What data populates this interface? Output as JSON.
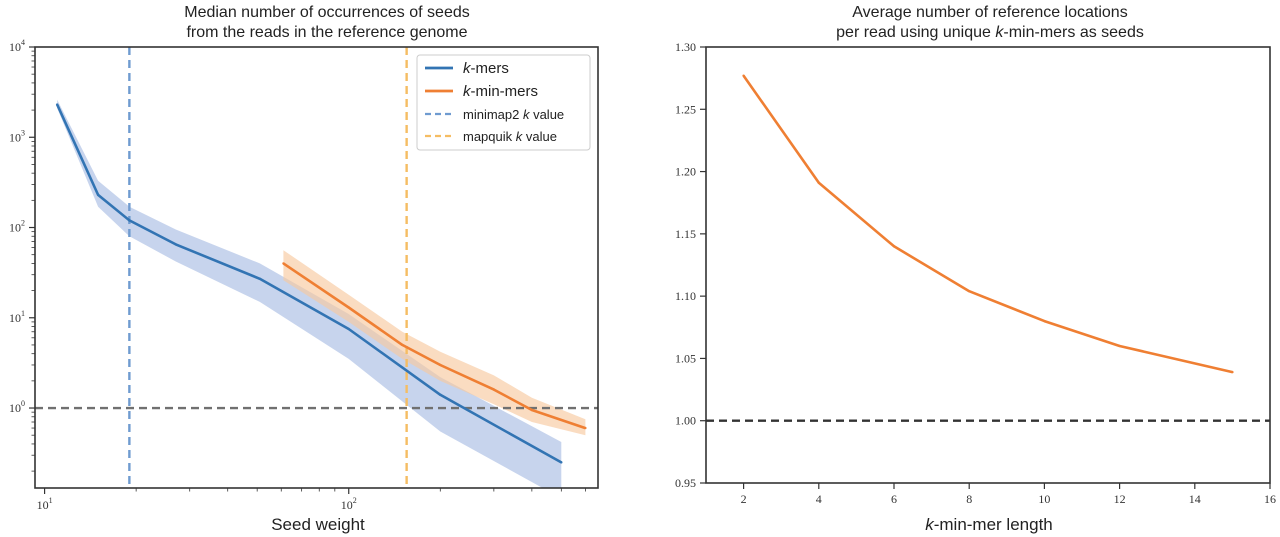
{
  "chart_data": [
    {
      "type": "line",
      "title": [
        "Median number of occurrences of seeds",
        "from the reads in the reference genome"
      ],
      "xlabel": "Seed weight",
      "ylabel": "",
      "xscale": "log",
      "yscale": "log",
      "xlim": [
        9.3,
        660
      ],
      "ylim": [
        0.13,
        10000
      ],
      "x_ticks": [
        {
          "base": "10",
          "exp": "1",
          "value": 10
        },
        {
          "base": "10",
          "exp": "2",
          "value": 100
        }
      ],
      "y_ticks": [
        {
          "base": "10",
          "exp": "0",
          "value": 1
        },
        {
          "base": "10",
          "exp": "1",
          "value": 10
        },
        {
          "base": "10",
          "exp": "2",
          "value": 100
        },
        {
          "base": "10",
          "exp": "3",
          "value": 1000
        },
        {
          "base": "10",
          "exp": "4",
          "value": 10000
        }
      ],
      "series": [
        {
          "name": "k-mers",
          "color": "#3274b3",
          "band_color": "#a9bde3",
          "x": [
            11,
            15,
            19,
            27,
            51,
            100,
            200,
            500
          ],
          "y": [
            2300,
            230,
            120,
            65,
            27,
            7.5,
            1.4,
            0.25
          ],
          "lower": [
            2100,
            170,
            80,
            42,
            15,
            3.5,
            0.55,
            0.1
          ],
          "upper": [
            2600,
            330,
            170,
            95,
            40,
            11,
            2.2,
            0.42
          ]
        },
        {
          "name": "k-min-mers",
          "color": "#ef7f33",
          "band_color": "#f7c9a0",
          "x": [
            61,
            100,
            150,
            200,
            300,
            400,
            600
          ],
          "y": [
            40,
            13,
            5,
            3,
            1.6,
            0.95,
            0.6
          ],
          "lower": [
            26,
            9,
            3.5,
            2,
            1.1,
            0.7,
            0.5
          ],
          "upper": [
            56,
            18,
            7,
            4.2,
            2.3,
            1.3,
            0.75
          ]
        }
      ],
      "reference_lines": [
        {
          "orientation": "horizontal",
          "value": 1,
          "color": "#707070"
        },
        {
          "orientation": "vertical",
          "value": 19,
          "name": "minimap2 k value",
          "color": "#6f9bd0"
        },
        {
          "orientation": "vertical",
          "value": 155,
          "name": "mapquik k value",
          "color": "#f5bd63"
        }
      ],
      "legend": {
        "placement": "top-right",
        "entries": [
          {
            "prefix": "k",
            "suffix": "-mers",
            "style": "solid",
            "color": "#3274b3"
          },
          {
            "prefix": "k",
            "suffix": "-min-mers",
            "style": "solid",
            "color": "#ef7f33"
          },
          {
            "prefix": "minimap2 ",
            "mid": "k",
            "suffix": " value",
            "style": "dashed",
            "color": "#6f9bd0"
          },
          {
            "prefix": "mapquik ",
            "mid": "k",
            "suffix": " value",
            "style": "dashed",
            "color": "#f5bd63"
          }
        ]
      }
    },
    {
      "type": "line",
      "title": [
        "Average number of reference locations",
        "per read using unique k-min-mers as seeds"
      ],
      "xlabel": "k-min-mer length",
      "ylabel": "",
      "xlim": [
        1,
        16
      ],
      "ylim": [
        0.95,
        1.3
      ],
      "x_ticks": [
        "2",
        "4",
        "6",
        "8",
        "10",
        "12",
        "14",
        "16"
      ],
      "y_ticks": [
        "0.95",
        "1.00",
        "1.05",
        "1.10",
        "1.15",
        "1.20",
        "1.25",
        "1.30"
      ],
      "series": [
        {
          "color": "#ef7f33",
          "x": [
            2,
            4,
            6,
            8,
            10,
            12,
            15
          ],
          "y": [
            1.277,
            1.191,
            1.14,
            1.104,
            1.08,
            1.06,
            1.039
          ]
        }
      ],
      "reference_lines": [
        {
          "orientation": "horizontal",
          "value": 1.0,
          "color": "#333333"
        }
      ]
    }
  ]
}
